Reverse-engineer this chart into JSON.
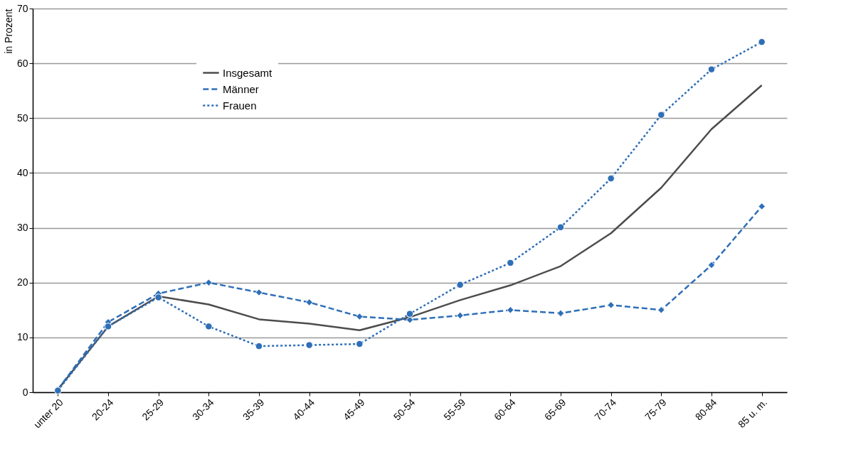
{
  "chart_data": {
    "type": "line",
    "ylabel": "in Prozent",
    "categories": [
      "unter 20",
      "20-24",
      "25-29",
      "30-34",
      "35-39",
      "40-44",
      "45-49",
      "50-54",
      "55-59",
      "60-64",
      "65-69",
      "70-74",
      "75-79",
      "80-84",
      "85 u. m."
    ],
    "series": [
      {
        "name": "Insgesamt",
        "color": "#4d4d4d",
        "marker": "none",
        "line_style": "solid",
        "values": [
          0.5,
          12,
          17.5,
          16,
          13.3,
          12.5,
          11.3,
          13.7,
          16.8,
          19.5,
          23,
          29,
          37.3,
          48,
          56
        ]
      },
      {
        "name": "Männer",
        "color": "#2f6fb7",
        "marker": "diamond",
        "line_style": "dashed",
        "values": [
          0.5,
          12.8,
          18,
          20,
          18.2,
          16.4,
          13.8,
          13.2,
          14,
          15,
          14.4,
          15.9,
          15,
          23.2,
          33.9
        ]
      },
      {
        "name": "Frauen",
        "color": "#2f6fb7",
        "marker": "circle",
        "line_style": "dotted",
        "values": [
          0.3,
          12,
          17.3,
          12,
          8.4,
          8.6,
          8.8,
          14.3,
          19.6,
          23.6,
          30.1,
          39,
          50.6,
          58.9,
          63.9
        ]
      }
    ],
    "ylim": [
      0,
      70
    ],
    "yticks": [
      0,
      10,
      20,
      30,
      40,
      50,
      60,
      70
    ],
    "grid": "y",
    "legend": "top left"
  }
}
